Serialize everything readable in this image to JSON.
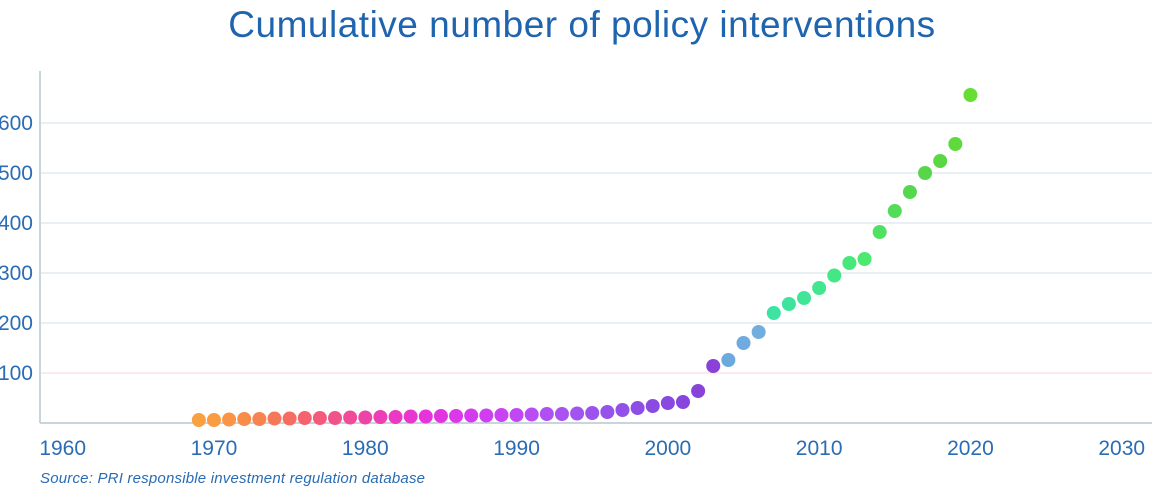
{
  "title": "Cumulative number of policy interventions",
  "source_note": "Source: PRI responsible investment regulation database",
  "colors": {
    "title": "#1E64AE",
    "tick_label": "#2B6CB4",
    "axis": "#C6D6DB",
    "gridline": "#DCE5E9",
    "gridline_100": "#F6E1E1",
    "source": "#2A6CB4",
    "background": "#FFFFFF"
  },
  "chart_data": {
    "type": "scatter",
    "title": "Cumulative number of policy interventions",
    "xlabel": "",
    "ylabel": "",
    "xlim": [
      1958.5,
      2032
    ],
    "ylim": [
      0,
      700
    ],
    "x_ticks": [
      1960,
      1970,
      1980,
      1990,
      2000,
      2010,
      2020,
      2030
    ],
    "y_ticks": [
      100,
      200,
      300,
      400,
      500,
      600
    ],
    "grid": "horizontal-only",
    "legend": "none",
    "marker": "circle",
    "points": [
      {
        "year": 1969,
        "value": 6,
        "color": "#F9A140"
      },
      {
        "year": 1970,
        "value": 6,
        "color": "#F99C42"
      },
      {
        "year": 1971,
        "value": 7,
        "color": "#F99545"
      },
      {
        "year": 1972,
        "value": 8,
        "color": "#F88D4A"
      },
      {
        "year": 1973,
        "value": 8,
        "color": "#F88350"
      },
      {
        "year": 1974,
        "value": 9,
        "color": "#F77858"
      },
      {
        "year": 1975,
        "value": 9,
        "color": "#F56D62"
      },
      {
        "year": 1976,
        "value": 10,
        "color": "#F4636E"
      },
      {
        "year": 1977,
        "value": 10,
        "color": "#F35A7B"
      },
      {
        "year": 1978,
        "value": 10,
        "color": "#F15289"
      },
      {
        "year": 1979,
        "value": 11,
        "color": "#F04B98"
      },
      {
        "year": 1980,
        "value": 11,
        "color": "#EE44A7"
      },
      {
        "year": 1981,
        "value": 12,
        "color": "#EC3FB5"
      },
      {
        "year": 1982,
        "value": 12,
        "color": "#EA3AC3"
      },
      {
        "year": 1983,
        "value": 13,
        "color": "#E837CF"
      },
      {
        "year": 1984,
        "value": 13,
        "color": "#E535DA"
      },
      {
        "year": 1985,
        "value": 14,
        "color": "#E135E2"
      },
      {
        "year": 1986,
        "value": 14,
        "color": "#DC37EA"
      },
      {
        "year": 1987,
        "value": 15,
        "color": "#D63AEF"
      },
      {
        "year": 1988,
        "value": 15,
        "color": "#D03EF2"
      },
      {
        "year": 1989,
        "value": 16,
        "color": "#C943F3"
      },
      {
        "year": 1990,
        "value": 16,
        "color": "#C147F3"
      },
      {
        "year": 1991,
        "value": 17,
        "color": "#B94CF3"
      },
      {
        "year": 1992,
        "value": 18,
        "color": "#B150F2"
      },
      {
        "year": 1993,
        "value": 18,
        "color": "#AA52F1"
      },
      {
        "year": 1994,
        "value": 19,
        "color": "#A254F0"
      },
      {
        "year": 1995,
        "value": 20,
        "color": "#9C53EE"
      },
      {
        "year": 1996,
        "value": 22,
        "color": "#9752EB"
      },
      {
        "year": 1997,
        "value": 26,
        "color": "#9250E8"
      },
      {
        "year": 1998,
        "value": 30,
        "color": "#8E4EE5"
      },
      {
        "year": 1999,
        "value": 34,
        "color": "#8B4BE2"
      },
      {
        "year": 2000,
        "value": 40,
        "color": "#8948DF"
      },
      {
        "year": 2001,
        "value": 42,
        "color": "#8746DC"
      },
      {
        "year": 2002,
        "value": 64,
        "color": "#8844D9"
      },
      {
        "year": 2003,
        "value": 114,
        "color": "#8A41D8"
      },
      {
        "year": 2004,
        "value": 126,
        "color": "#6CA9DC"
      },
      {
        "year": 2005,
        "value": 160,
        "color": "#6FABDE"
      },
      {
        "year": 2006,
        "value": 182,
        "color": "#72ADE0"
      },
      {
        "year": 2007,
        "value": 220,
        "color": "#3DE3A3"
      },
      {
        "year": 2008,
        "value": 238,
        "color": "#3EE49D"
      },
      {
        "year": 2009,
        "value": 250,
        "color": "#40E596"
      },
      {
        "year": 2010,
        "value": 270,
        "color": "#42E68E"
      },
      {
        "year": 2011,
        "value": 295,
        "color": "#44E785"
      },
      {
        "year": 2012,
        "value": 320,
        "color": "#47E87B"
      },
      {
        "year": 2013,
        "value": 328,
        "color": "#4BE96F"
      },
      {
        "year": 2014,
        "value": 382,
        "color": "#4FE162"
      },
      {
        "year": 2015,
        "value": 424,
        "color": "#52DC58"
      },
      {
        "year": 2016,
        "value": 462,
        "color": "#55D850"
      },
      {
        "year": 2017,
        "value": 500,
        "color": "#57D649"
      },
      {
        "year": 2018,
        "value": 524,
        "color": "#5AD743"
      },
      {
        "year": 2019,
        "value": 558,
        "color": "#5FDA3C"
      },
      {
        "year": 2020,
        "value": 656,
        "color": "#66DD33"
      }
    ]
  }
}
